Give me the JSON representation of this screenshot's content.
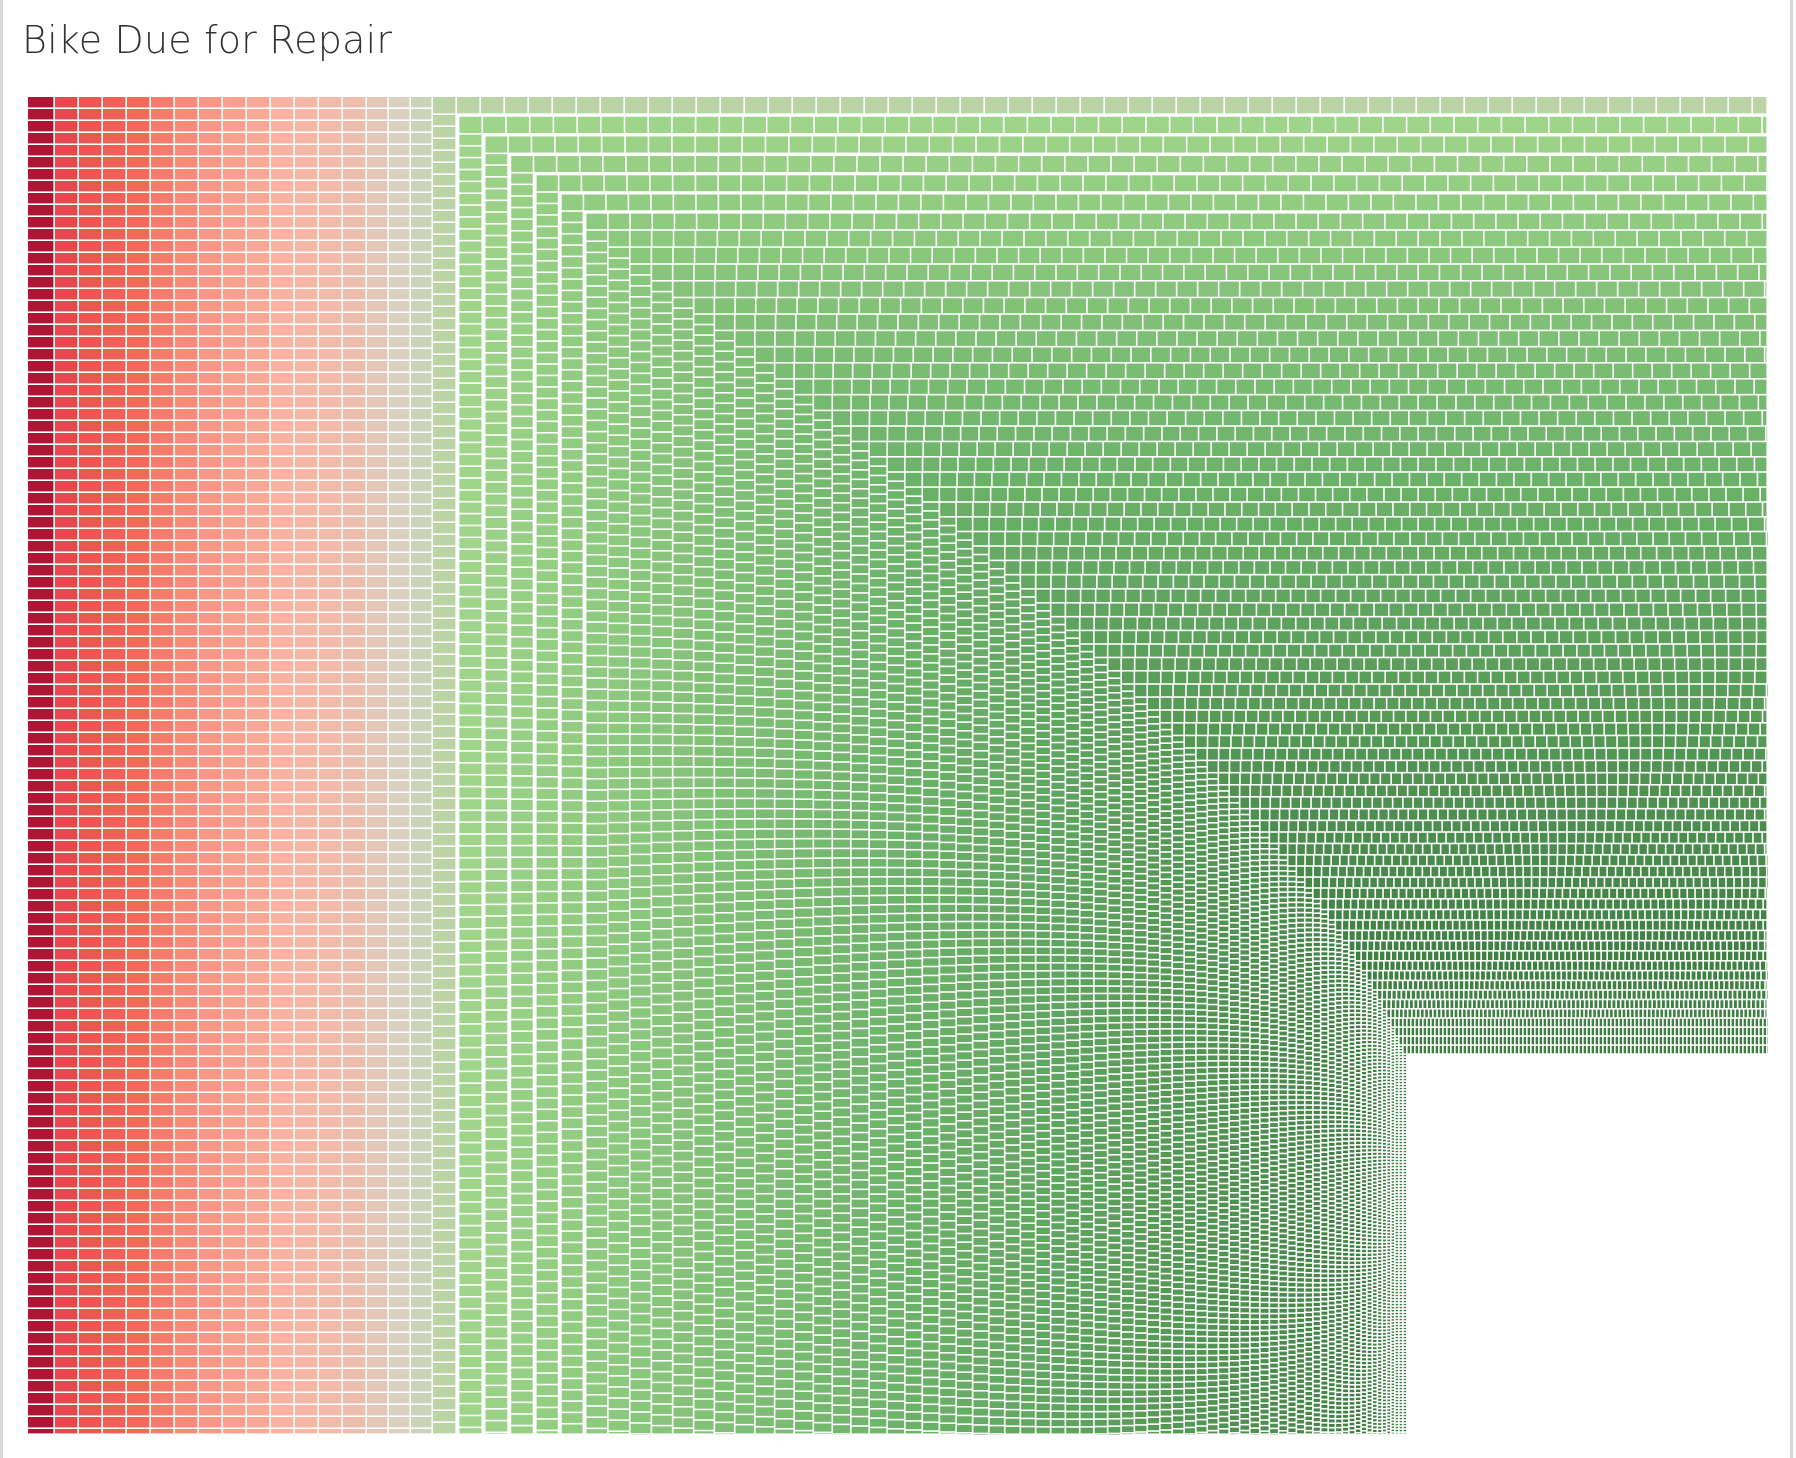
{
  "title": "Bike Due for Repair",
  "chart_data": {
    "type": "treemap",
    "title": "Bike Due for Repair",
    "color_scale": {
      "type": "diverging",
      "low": "#b01535",
      "mid_low": "#fbb2a0",
      "center": "#d6d3c3",
      "mid_high": "#9fd58a",
      "high": "#3e7f42"
    },
    "grid_lines": false,
    "legend": "none"
  }
}
